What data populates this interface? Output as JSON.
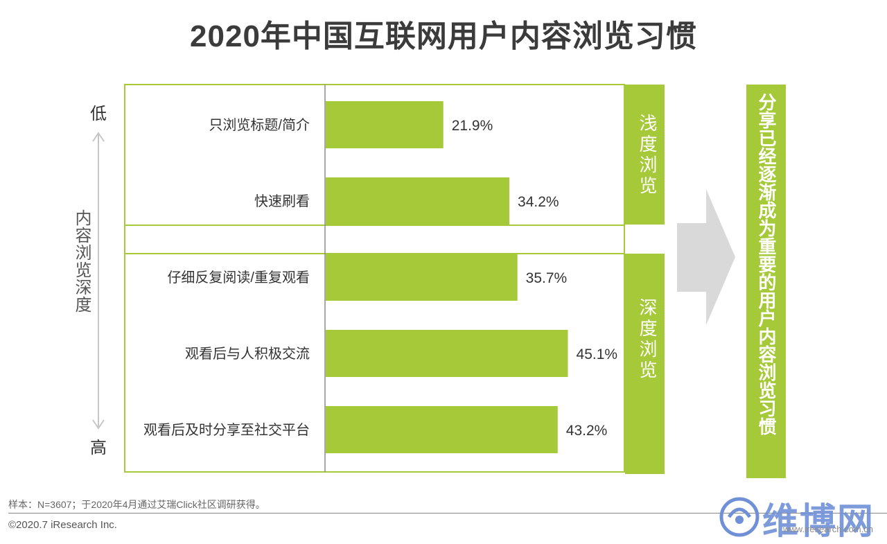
{
  "title": "2020年中国互联网用户内容浏览习惯",
  "axis": {
    "low_label": "低",
    "high_label": "高",
    "depth_label": "内容浏览深度"
  },
  "bands": {
    "shallow_label": "浅度浏览",
    "deep_label": "深度浏览"
  },
  "conclusion": "分享已经逐渐成为重要的用户内容浏览习惯",
  "colors": {
    "bar": "#a6c93a",
    "arrow": "#d9d9d9",
    "title": "#3b3b3b",
    "watermark": "#6f90d6"
  },
  "chart_data": {
    "type": "bar",
    "orientation": "horizontal",
    "categories": [
      "只浏览标题/简介",
      "快速刷看",
      "仔细反复阅读/重复观看",
      "观看后与人积极交流",
      "观看后及时分享至社交平台"
    ],
    "values": [
      21.9,
      34.2,
      35.7,
      45.1,
      43.2
    ],
    "value_labels": [
      "21.9%",
      "34.2%",
      "35.7%",
      "45.1%",
      "43.2%"
    ],
    "xlim": [
      0,
      60
    ],
    "groups": [
      {
        "label": "浅度浏览",
        "categories": [
          "只浏览标题/简介",
          "快速刷看"
        ]
      },
      {
        "label": "深度浏览",
        "categories": [
          "仔细反复阅读/重复观看",
          "观看后与人积极交流",
          "观看后及时分享至社交平台"
        ]
      }
    ]
  },
  "footer": {
    "note": "样本：N=3607；于2020年4月通过艾瑞Click社区调研获得。",
    "copyright": "©2020.7 iResearch Inc."
  },
  "watermark": {
    "text": "维博网",
    "site": "www.iresearch.com.cn"
  }
}
